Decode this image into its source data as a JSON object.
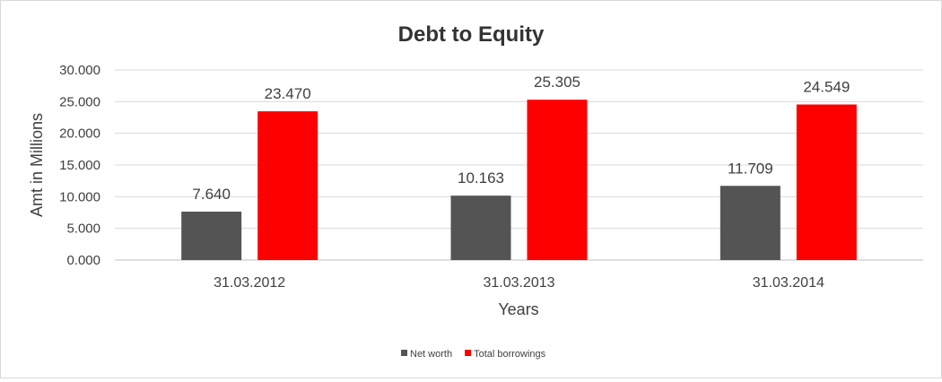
{
  "chart_data": {
    "type": "bar",
    "title": "Debt to Equity",
    "xlabel": "Years",
    "ylabel": "Amt in Millions",
    "categories": [
      "31.03.2012",
      "31.03.2013",
      "31.03.2014"
    ],
    "series": [
      {
        "name": "Net worth",
        "values": [
          7.64,
          10.163,
          11.709
        ],
        "color": "#545454"
      },
      {
        "name": "Total borrowings",
        "values": [
          23.47,
          25.305,
          24.549
        ],
        "color": "#ff0000"
      }
    ],
    "ylim": [
      0,
      30
    ],
    "yticks": [
      "0.000",
      "5.000",
      "10.000",
      "15.000",
      "20.000",
      "25.000",
      "30.000"
    ],
    "data_labels": [
      [
        "7.640",
        "10.163",
        "11.709"
      ],
      [
        "23.470",
        "25.305",
        "24.549"
      ]
    ],
    "grid": true,
    "legend_position": "bottom"
  }
}
